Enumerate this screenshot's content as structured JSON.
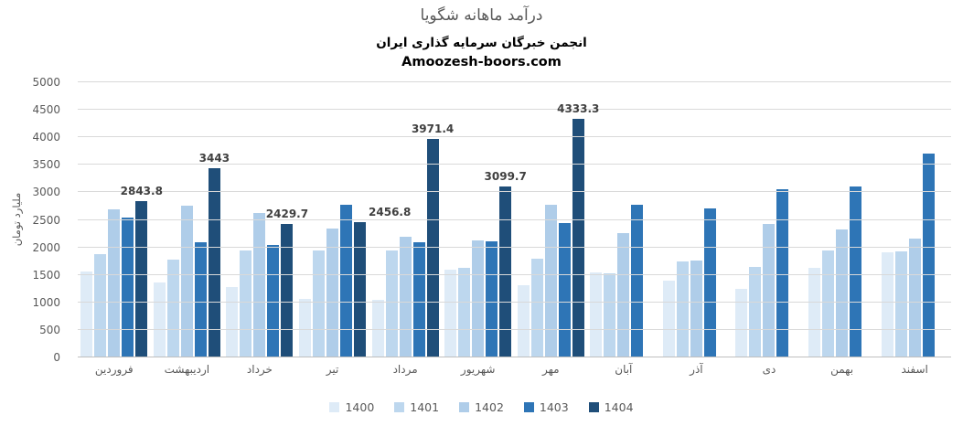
{
  "header": {
    "title": "درآمد ماهانه شگویا",
    "subtitle": "انجمن خبرگان سرمایه گذاری ایران",
    "website": "Amoozesh-boors.com"
  },
  "chart_data": {
    "type": "bar",
    "title": "درآمد ماهانه شگویا",
    "subtitle": "انجمن خبرگان سرمایه گذاری ایران",
    "annotation": "Amoozesh-boors.com",
    "xlabel": "",
    "ylabel": "ملیارد تومان",
    "ylim": [
      0,
      5000
    ],
    "yticks": [
      0,
      500,
      1000,
      1500,
      2000,
      2500,
      3000,
      3500,
      4000,
      4500,
      5000
    ],
    "grid": true,
    "legend_position": "bottom",
    "categories": [
      "فروردین",
      "اردیبهشت",
      "خرداد",
      "تیر",
      "مرداد",
      "شهریور",
      "مهر",
      "آبان",
      "آذر",
      "دی",
      "بهمن",
      "اسفند"
    ],
    "series": [
      {
        "name": "1400",
        "color": "#DEEBF7",
        "values": [
          1560,
          1370,
          1280,
          1070,
          1040,
          1600,
          1320,
          1550,
          1400,
          1250,
          1620,
          1910
        ]
      },
      {
        "name": "1401",
        "color": "#BDD7EE",
        "values": [
          1880,
          1770,
          1950,
          1950,
          1940,
          1630,
          1800,
          1530,
          1750,
          1640,
          1950,
          1920
        ]
      },
      {
        "name": "1402",
        "color": "#AFCDE9",
        "values": [
          2690,
          2750,
          2630,
          2350,
          2190,
          2120,
          2770,
          2260,
          1760,
          2420,
          2330,
          2160
        ]
      },
      {
        "name": "1403",
        "color": "#2E75B6",
        "values": [
          2550,
          2090,
          2050,
          2780,
          2090,
          2110,
          2450,
          2770,
          2700,
          3060,
          3110,
          3700
        ]
      },
      {
        "name": "1404",
        "color": "#1F4E79",
        "values": [
          2843.8,
          3443,
          2429.7,
          2456.8,
          3971.4,
          3099.7,
          4333.3,
          null,
          null,
          null,
          null,
          null
        ],
        "labels": [
          "2843.8",
          "3443",
          "2429.7",
          "2456.8",
          "3971.4",
          "3099.7",
          "4333.3",
          "",
          "",
          "",
          "",
          ""
        ]
      }
    ]
  }
}
